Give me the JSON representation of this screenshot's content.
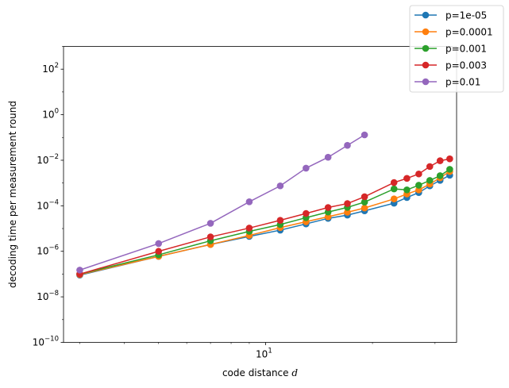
{
  "chart_data": {
    "type": "line",
    "title": "",
    "xlabel_text": "code distance ",
    "xlabel_var": "d",
    "ylabel": "decoding time per measurement round",
    "x_scale": "log",
    "y_scale": "log",
    "xlim": [
      2.7,
      34.5
    ],
    "ylim": [
      1e-10,
      1000
    ],
    "x_tick_labels": [
      {
        "base": "10",
        "exp": "1",
        "value": 10
      }
    ],
    "y_tick_labels": [
      {
        "base": "10",
        "exp": "2",
        "value": 100
      },
      {
        "base": "10",
        "exp": "0",
        "value": 1
      },
      {
        "base": "10",
        "exp": "−2",
        "value": 0.01
      },
      {
        "base": "10",
        "exp": "−4",
        "value": 0.0001
      },
      {
        "base": "10",
        "exp": "−6",
        "value": 1e-06
      },
      {
        "base": "10",
        "exp": "−8",
        "value": 1e-08
      },
      {
        "base": "10",
        "exp": "−10",
        "value": 1e-10
      }
    ],
    "grid": false,
    "legend_position": "top-right",
    "series": [
      {
        "name": "p=1e-05",
        "color": "#1f77b4",
        "x": [
          3,
          5,
          7,
          9,
          11,
          13,
          15,
          17,
          19,
          23,
          25,
          27,
          29,
          31,
          33
        ],
        "y": [
          9e-08,
          6e-07,
          2e-06,
          4.5e-06,
          8.5e-06,
          1.6e-05,
          2.8e-05,
          3.9e-05,
          6e-05,
          0.00013,
          0.00023,
          0.00038,
          0.00075,
          0.0013,
          0.0022
        ]
      },
      {
        "name": "p=0.0001",
        "color": "#ff7f0e",
        "x": [
          3,
          5,
          7,
          9,
          11,
          13,
          15,
          17,
          19,
          23,
          25,
          27,
          29,
          31,
          33
        ],
        "y": [
          9.5e-08,
          6e-07,
          2e-06,
          5e-06,
          1.1e-05,
          2e-05,
          3.3e-05,
          5.2e-05,
          8e-05,
          0.0002,
          0.00033,
          0.0005,
          0.0009,
          0.0017,
          0.0032
        ]
      },
      {
        "name": "p=0.001",
        "color": "#2ca02c",
        "x": [
          3,
          5,
          7,
          9,
          11,
          13,
          15,
          17,
          19,
          23,
          25,
          27,
          29,
          31,
          33
        ],
        "y": [
          1e-07,
          7e-07,
          2.9e-06,
          7.5e-06,
          1.5e-05,
          3e-05,
          5.3e-05,
          8.5e-05,
          0.000145,
          0.00055,
          0.0005,
          0.0008,
          0.0013,
          0.0021,
          0.004
        ]
      },
      {
        "name": "p=0.003",
        "color": "#d62728",
        "x": [
          3,
          5,
          7,
          9,
          11,
          13,
          15,
          17,
          19,
          23,
          25,
          27,
          29,
          31,
          33
        ],
        "y": [
          1e-07,
          1e-06,
          4.3e-06,
          1.05e-05,
          2.3e-05,
          4.6e-05,
          8.4e-05,
          0.000125,
          0.00025,
          0.00105,
          0.0016,
          0.0025,
          0.0053,
          0.0095,
          0.0115
        ]
      },
      {
        "name": "p=0.01",
        "color": "#9467bd",
        "x": [
          3,
          5,
          7,
          9,
          11,
          13,
          15,
          17,
          19
        ],
        "y": [
          1.5e-07,
          2.2e-06,
          1.7e-05,
          0.00015,
          0.00075,
          0.0045,
          0.0135,
          0.045,
          0.13
        ]
      }
    ]
  }
}
